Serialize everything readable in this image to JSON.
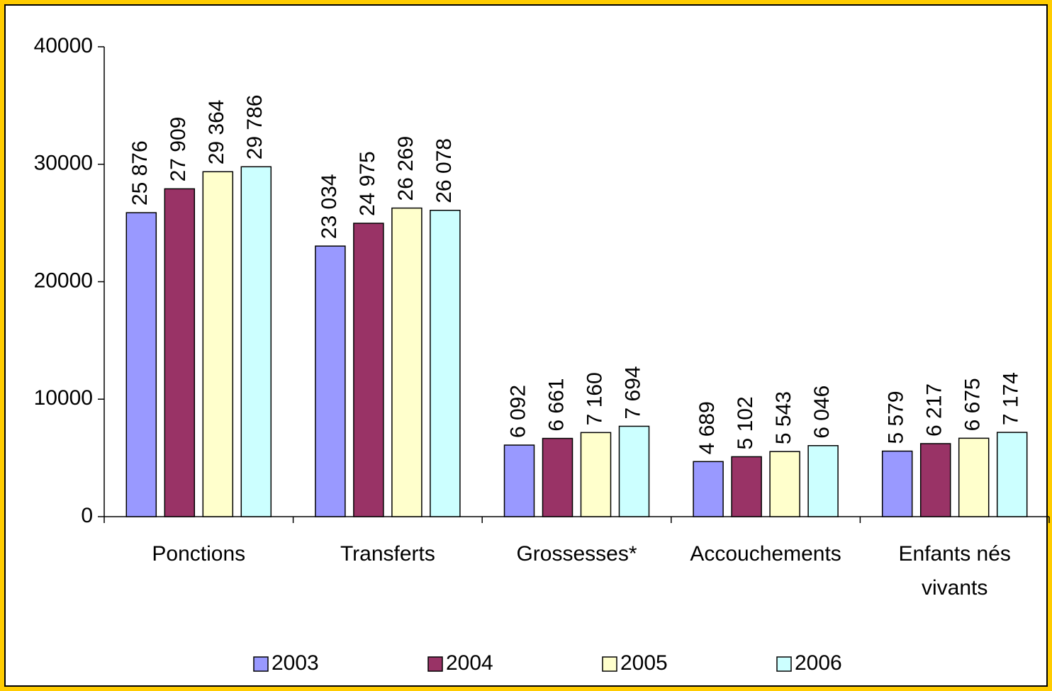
{
  "chart_data": {
    "type": "bar",
    "categories": [
      "Ponctions",
      "Transferts",
      "Grossesses*",
      "Accouchements",
      "Enfants nés vivants"
    ],
    "series": [
      {
        "name": "2003",
        "color": "#9999ff",
        "values": [
          25876,
          23034,
          6092,
          4689,
          5579
        ],
        "value_labels": [
          "25 876",
          "23 034",
          "6 092",
          "4 689",
          "5 579"
        ]
      },
      {
        "name": "2004",
        "color": "#993366",
        "values": [
          27909,
          24975,
          6661,
          5102,
          6217
        ],
        "value_labels": [
          "27 909",
          "24 975",
          "6 661",
          "5 102",
          "6 217"
        ]
      },
      {
        "name": "2005",
        "color": "#ffffcc",
        "values": [
          29364,
          26269,
          7160,
          5543,
          6675
        ],
        "value_labels": [
          "29 364",
          "26 269",
          "7 160",
          "5 543",
          "6 675"
        ]
      },
      {
        "name": "2006",
        "color": "#ccffff",
        "values": [
          29786,
          26078,
          7694,
          6046,
          7174
        ],
        "value_labels": [
          "29 786",
          "26 078",
          "7 694",
          "6 046",
          "7 174"
        ]
      }
    ],
    "ylim": [
      0,
      40000
    ],
    "yticks": [
      0,
      10000,
      20000,
      30000,
      40000
    ],
    "legend": "bottom"
  }
}
